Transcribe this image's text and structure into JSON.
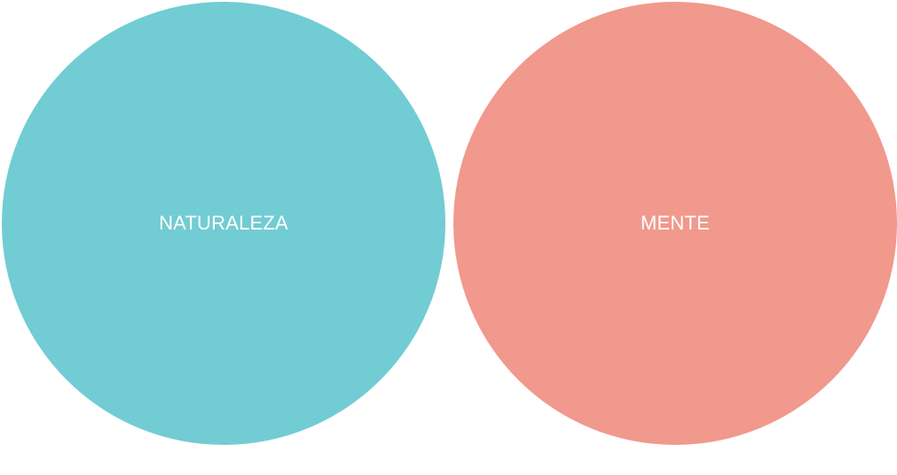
{
  "circles": [
    {
      "label": "NATURALEZA",
      "color": "#72CCD3"
    },
    {
      "label": "MENTE",
      "color": "#F0998C"
    }
  ]
}
